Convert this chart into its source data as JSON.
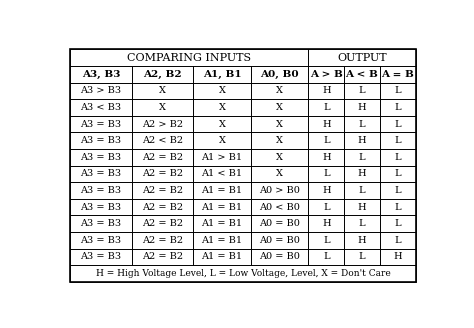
{
  "title_left": "COMPARING INPUTS",
  "title_right": "OUTPUT",
  "col_headers": [
    "A3, B3",
    "A2, B2",
    "A1, B1",
    "A0, B0",
    "A > B",
    "A < B",
    "A = B"
  ],
  "rows": [
    [
      "A3 > B3",
      "X",
      "X",
      "X",
      "H",
      "L",
      "L"
    ],
    [
      "A3 < B3",
      "X",
      "X",
      "X",
      "L",
      "H",
      "L"
    ],
    [
      "A3 = B3",
      "A2 > B2",
      "X",
      "X",
      "H",
      "L",
      "L"
    ],
    [
      "A3 = B3",
      "A2 < B2",
      "X",
      "X",
      "L",
      "H",
      "L"
    ],
    [
      "A3 = B3",
      "A2 = B2",
      "A1 > B1",
      "X",
      "H",
      "L",
      "L"
    ],
    [
      "A3 = B3",
      "A2 = B2",
      "A1 < B1",
      "X",
      "L",
      "H",
      "L"
    ],
    [
      "A3 = B3",
      "A2 = B2",
      "A1 = B1",
      "A0 > B0",
      "H",
      "L",
      "L"
    ],
    [
      "A3 = B3",
      "A2 = B2",
      "A1 = B1",
      "A0 < B0",
      "L",
      "H",
      "L"
    ],
    [
      "A3 = B3",
      "A2 = B2",
      "A1 = B1",
      "A0 = B0",
      "H",
      "L",
      "L"
    ],
    [
      "A3 = B3",
      "A2 = B2",
      "A1 = B1",
      "A0 = B0",
      "L",
      "H",
      "L"
    ],
    [
      "A3 = B3",
      "A2 = B2",
      "A1 = B1",
      "A0 = B0",
      "L",
      "L",
      "H"
    ]
  ],
  "footnote": "H = High Voltage Level, L = Low Voltage, Level, X = Don't Care",
  "bg_color": "#ffffff",
  "border_color": "#000000",
  "text_color": "#000000",
  "col_widths_rel": [
    1.55,
    1.55,
    1.45,
    1.45,
    0.9,
    0.9,
    0.9
  ],
  "figsize": [
    4.74,
    3.28
  ],
  "dpi": 100,
  "font_family": "serif",
  "fontsize_header": 7.5,
  "fontsize_title": 8.0,
  "fontsize_data": 7.0,
  "fontsize_footnote": 6.5
}
